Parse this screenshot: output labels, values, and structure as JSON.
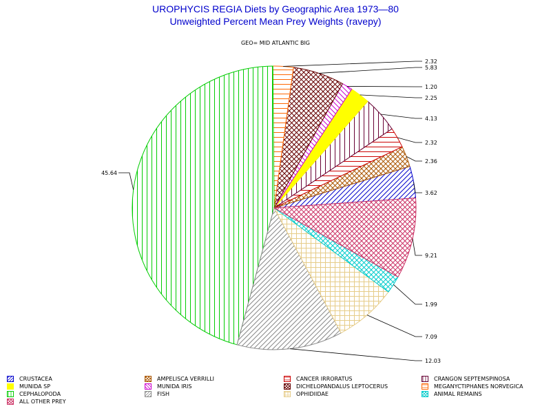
{
  "title": "UROPHYCIS REGIA Diets by Geographic Area 1973—80",
  "subtitle": "Unweighted Percent Mean Prey Weights (ravepy)",
  "geo_label": "GEO= MID ATLANTIC BIG",
  "chart_data": {
    "type": "pie",
    "title": "UROPHYCIS REGIA Diets by Geographic Area 1973—80",
    "subtitle": "Unweighted Percent Mean Prey Weights (ravepy)",
    "slices": [
      {
        "name": "CRUSTACEA",
        "value": 3.62,
        "label": "3.62",
        "color": "#0000cc",
        "pattern": "diag-right"
      },
      {
        "name": "AMPELISCA VERRILLI",
        "value": 2.36,
        "label": "2.36",
        "color": "#aa5500",
        "pattern": "crosshatch"
      },
      {
        "name": "CANCER IRRORATUS",
        "value": 2.32,
        "label": "2.32",
        "color": "#cc0000",
        "pattern": "horizontal"
      },
      {
        "name": "CRANGON SEPTEMSPINOSA",
        "value": 4.13,
        "label": "4.13",
        "color": "#660033",
        "pattern": "vertical"
      },
      {
        "name": "MUNIDA SP",
        "value": 2.25,
        "label": "2.25",
        "color": "#ffff00",
        "pattern": "solid"
      },
      {
        "name": "MUNIDA IRIS",
        "value": 1.2,
        "label": "1.20",
        "color": "#cc00cc",
        "pattern": "diag-left"
      },
      {
        "name": "DICHELOPANDALUS LEPTOCERUS",
        "value": 5.83,
        "label": "5.83",
        "color": "#660000",
        "pattern": "grid-diag"
      },
      {
        "name": "MEGANYCTIPHANES NORVEGICA",
        "value": 2.32,
        "label": "2.32",
        "color": "#ff6600",
        "pattern": "horizontal"
      },
      {
        "name": "CEPHALOPODA",
        "value": 45.64,
        "label": "45.64",
        "color": "#00cc00",
        "pattern": "vertical"
      },
      {
        "name": "FISH",
        "value": 12.03,
        "label": "12.03",
        "color": "#888888",
        "pattern": "diag-right"
      },
      {
        "name": "OPHIDIIDAE",
        "value": 7.09,
        "label": "7.09",
        "color": "#e6cc88",
        "pattern": "grid"
      },
      {
        "name": "ANIMAL REMAINS",
        "value": 1.99,
        "label": "1.99",
        "color": "#00cccc",
        "pattern": "crosshatch"
      },
      {
        "name": "ALL OTHER PREY",
        "value": 9.21,
        "label": "9.21",
        "color": "#cc3366",
        "pattern": "crosshatch"
      }
    ],
    "legend_position": "bottom"
  },
  "legend": [
    {
      "name": "CRUSTACEA",
      "color": "#0000cc",
      "pattern": "diag-right"
    },
    {
      "name": "AMPELISCA VERRILLI",
      "color": "#aa5500",
      "pattern": "crosshatch"
    },
    {
      "name": "CANCER IRRORATUS",
      "color": "#cc0000",
      "pattern": "horizontal"
    },
    {
      "name": "CRANGON SEPTEMSPINOSA",
      "color": "#660033",
      "pattern": "vertical"
    },
    {
      "name": "MUNIDA SP",
      "color": "#ffff00",
      "pattern": "solid"
    },
    {
      "name": "MUNIDA IRIS",
      "color": "#cc00cc",
      "pattern": "diag-left"
    },
    {
      "name": "DICHELOPANDALUS LEPTOCERUS",
      "color": "#660000",
      "pattern": "grid-diag"
    },
    {
      "name": "MEGANYCTIPHANES NORVEGICA",
      "color": "#ff6600",
      "pattern": "horizontal"
    },
    {
      "name": "CEPHALOPODA",
      "color": "#00cc00",
      "pattern": "vertical"
    },
    {
      "name": "FISH",
      "color": "#888888",
      "pattern": "diag-right"
    },
    {
      "name": "OPHIDIIDAE",
      "color": "#e6cc88",
      "pattern": "grid"
    },
    {
      "name": "ANIMAL REMAINS",
      "color": "#00cccc",
      "pattern": "crosshatch"
    },
    {
      "name": "ALL OTHER PREY",
      "color": "#cc3366",
      "pattern": "crosshatch"
    }
  ]
}
